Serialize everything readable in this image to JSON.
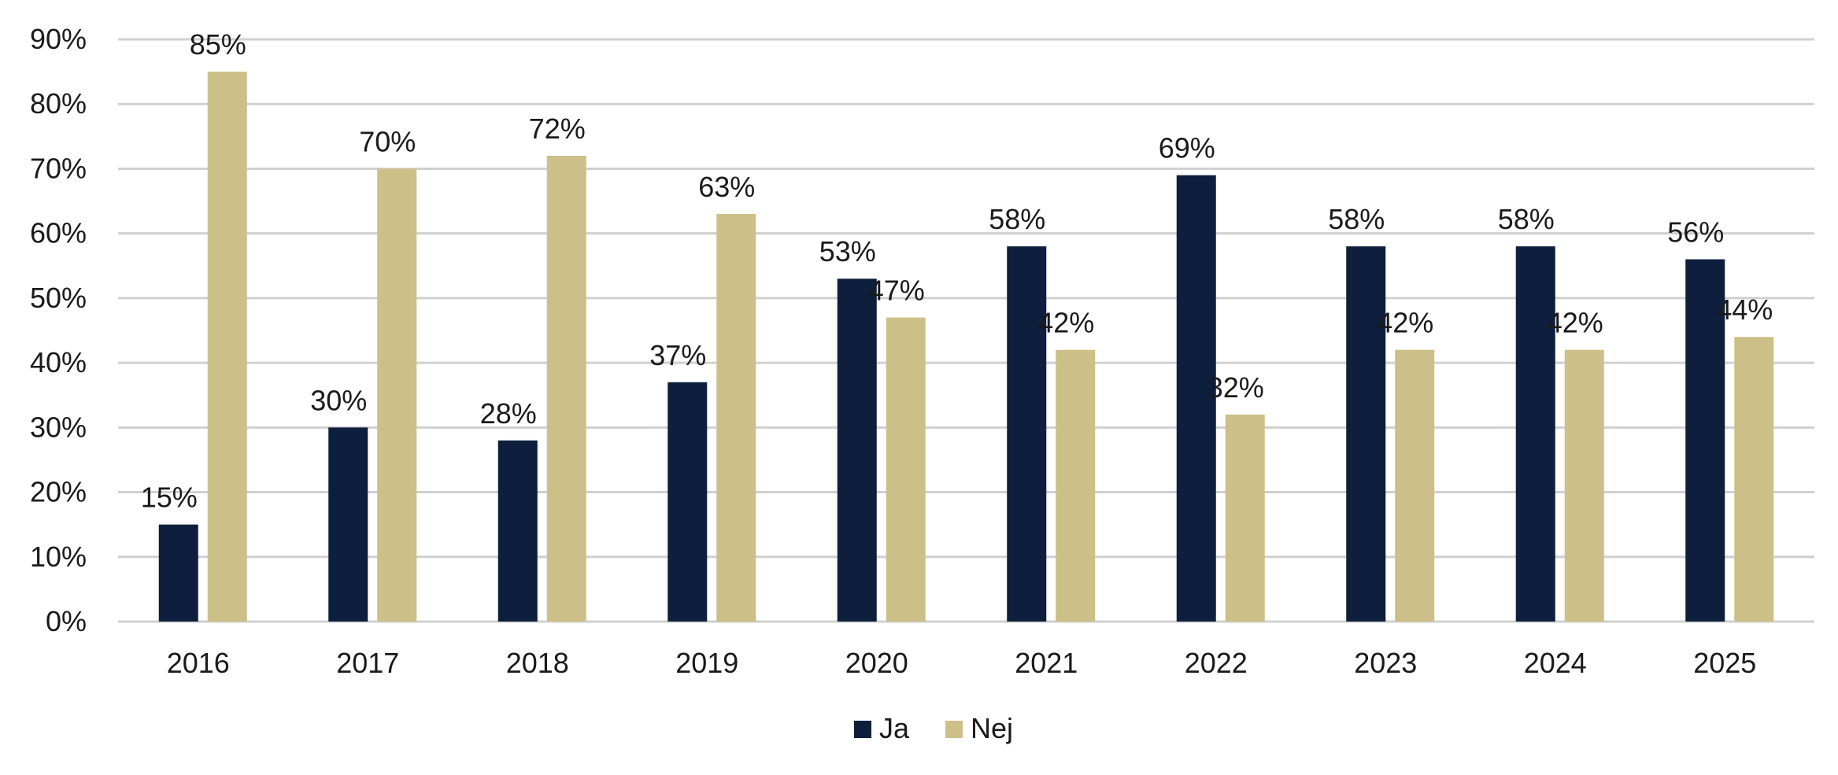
{
  "chart_data": {
    "type": "bar",
    "title": "",
    "xlabel": "",
    "ylabel": "",
    "categories": [
      "2016",
      "2017",
      "2018",
      "2019",
      "2020",
      "2021",
      "2022",
      "2023",
      "2024",
      "2025"
    ],
    "series": [
      {
        "name": "Ja",
        "color": "#0d1f3c",
        "values": [
          15,
          30,
          28,
          37,
          53,
          58,
          69,
          58,
          58,
          56
        ],
        "labels": [
          "15%",
          "30%",
          "28%",
          "37%",
          "53%",
          "58%",
          "69%",
          "58%",
          "58%",
          "56%"
        ]
      },
      {
        "name": "Nej",
        "color": "#cdbf88",
        "values": [
          85,
          70,
          72,
          63,
          47,
          42,
          32,
          42,
          42,
          44
        ],
        "labels": [
          "85%",
          "70%",
          "72%",
          "63%",
          "47%",
          "42%",
          "32%",
          "42%",
          "42%",
          "44%"
        ]
      }
    ],
    "ylim": [
      0,
      90
    ],
    "yticks": [
      0,
      10,
      20,
      30,
      40,
      50,
      60,
      70,
      80,
      90
    ],
    "ytick_labels": [
      "0%",
      "10%",
      "20%",
      "30%",
      "40%",
      "50%",
      "60%",
      "70%",
      "80%",
      "90%"
    ],
    "grid": true,
    "gridline_color": "#d0d0d0",
    "legend_position": "bottom-center"
  }
}
